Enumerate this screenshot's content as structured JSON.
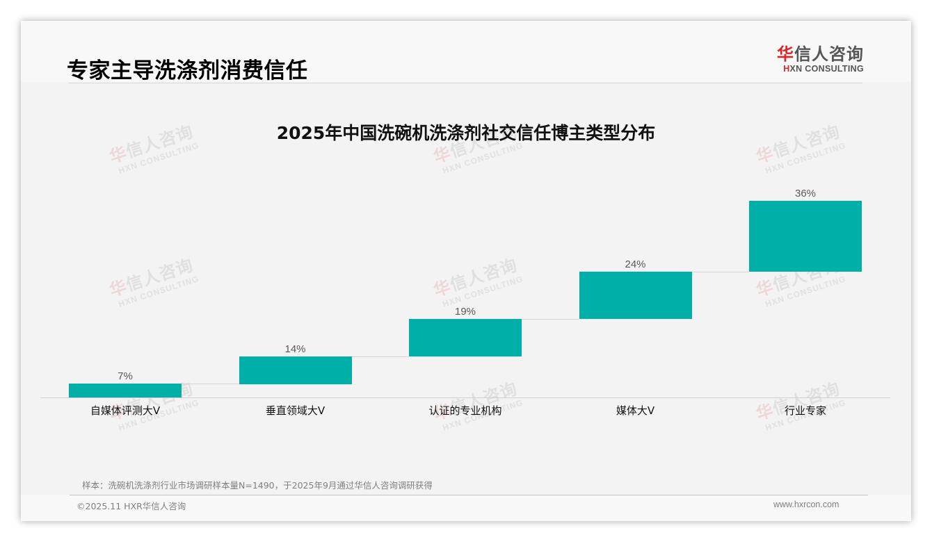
{
  "header": {
    "page_title": "专家主导洗涤剂消费信任",
    "logo": {
      "cn_first": "华",
      "cn_rest": "信人咨询",
      "en_first": "H",
      "en_rest": "XN CONSULTING"
    }
  },
  "watermark": {
    "cn_first": "华",
    "cn_rest": "信人咨询",
    "en": "HXN CONSULTING"
  },
  "chart_data": {
    "type": "bar",
    "subtype": "waterfall",
    "title": "2025年中国洗碗机洗涤剂社交信任博主类型分布",
    "categories": [
      "自媒体评测大V",
      "垂直领域大V",
      "认证的专业机构",
      "媒体大V",
      "行业专家"
    ],
    "values": [
      7,
      14,
      19,
      24,
      36
    ],
    "value_labels": [
      "7%",
      "14%",
      "19%",
      "24%",
      "36%"
    ],
    "unit": "%",
    "xlabel": "",
    "ylabel": "",
    "ylim": [
      0,
      100
    ],
    "grid": false,
    "legend": "none",
    "color": "#00b0a8"
  },
  "footer": {
    "note": "样本：洗碗机洗涤剂行业市场调研样本量N=1490，于2025年9月通过华信人咨询调研获得",
    "copyright": "©2025.11 HXR华信人咨询",
    "website": "www.hxrcon.com"
  }
}
